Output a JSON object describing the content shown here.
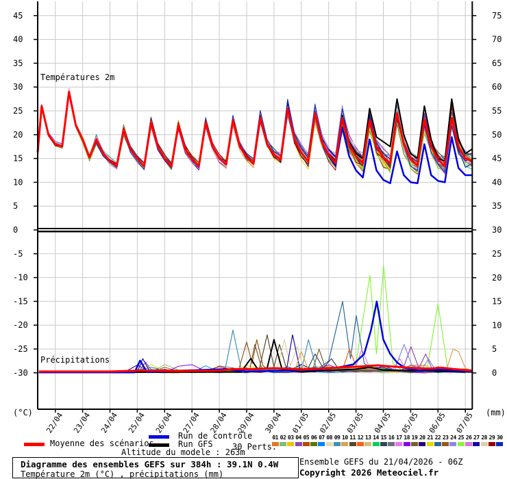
{
  "legend": {
    "mean_label": "Moyenne des scénarios",
    "control_label": "Run de contrôle",
    "gfs_label": "Run GFS",
    "perts_label": "30 Perts.",
    "altitude_line": "Altitude du modele : 263m",
    "pert_numbers": [
      "01",
      "02",
      "03",
      "04",
      "05",
      "06",
      "07",
      "08",
      "09",
      "10",
      "11",
      "12",
      "13",
      "14",
      "15",
      "16",
      "17",
      "18",
      "19",
      "20",
      "21",
      "22",
      "23",
      "24",
      "25",
      "26",
      "27",
      "28",
      "29",
      "30"
    ]
  },
  "footer": {
    "title_line": "Diagramme des ensembles GEFS sur 384h : 39.1N 0.4W",
    "subtitle_line": "Température 2m (°C) , précipitations (mm)",
    "run_line": "Ensemble GEFS du 21/04/2026 - 06Z",
    "copyright_line": "Copyright 2026 Meteociel.fr"
  },
  "chart_data": {
    "type": "line",
    "panels": {
      "top_label": "Températures 2m",
      "bottom_label": "Précipitations"
    },
    "x_dates": [
      "22/04",
      "23/04",
      "24/04",
      "25/04",
      "26/04",
      "27/04",
      "28/04",
      "29/04",
      "30/04",
      "01/05",
      "02/05",
      "03/05",
      "04/05",
      "05/05",
      "06/05",
      "07/05"
    ],
    "axes": {
      "left_ticks": [
        45,
        40,
        35,
        30,
        25,
        20,
        15,
        10,
        5,
        0,
        -5,
        -10,
        -15,
        -20,
        -25,
        -30
      ],
      "right_ticks": [
        75,
        70,
        65,
        60,
        55,
        50,
        45,
        40,
        35,
        30,
        25,
        20,
        15,
        10,
        5,
        0
      ],
      "left_unit": "(°C)",
      "right_unit": "(mm)",
      "temp_scale_c_per_grid": 5,
      "precip_scale_mm_per_grid": 5
    },
    "temperature": {
      "pre": [
        16.3,
        26,
        20
      ],
      "mean_quads": [
        [
          18,
          17.5,
          29,
          22
        ],
        [
          19,
          15.2,
          19,
          16
        ],
        [
          14.5,
          13.5,
          21,
          17
        ],
        [
          15,
          13.3,
          22.5,
          17.5
        ],
        [
          15,
          13.3,
          22,
          17
        ],
        [
          14.8,
          13.4,
          22.5,
          17.5
        ],
        [
          15,
          13.8,
          23,
          17.5
        ],
        [
          15.2,
          13.9,
          23.5,
          18
        ],
        [
          15.8,
          14.8,
          25.5,
          19
        ],
        [
          16.2,
          14.4,
          24.5,
          18.5
        ],
        [
          15.8,
          14,
          23.5,
          18
        ],
        [
          15.4,
          14,
          23,
          17.5
        ],
        [
          15.2,
          13.9,
          24.5,
          18
        ],
        [
          14.8,
          13.5,
          23,
          17.5
        ],
        [
          14.8,
          13.4,
          23.5,
          17.5
        ]
      ],
      "mean_end": [
        15,
        14.5
      ],
      "control_quads": [
        [
          18,
          17.5,
          29,
          22
        ],
        [
          19,
          15.2,
          19,
          16
        ],
        [
          14.5,
          13.5,
          21,
          17
        ],
        [
          15,
          13.3,
          22.5,
          17.5
        ],
        [
          15,
          13.3,
          22,
          17
        ],
        [
          14.8,
          13.4,
          22.5,
          17.5
        ],
        [
          15,
          13.8,
          23,
          17.5
        ],
        [
          15.2,
          13.9,
          23.5,
          18
        ],
        [
          15.8,
          14.8,
          25.5,
          19
        ],
        [
          16.2,
          14.4,
          24.5,
          18.5
        ],
        [
          15.5,
          13.5,
          21.5,
          15.5
        ],
        [
          12.5,
          11,
          19,
          12.5
        ],
        [
          10.5,
          9.8,
          16.5,
          11.5
        ],
        [
          10,
          9.8,
          18,
          11.5
        ],
        [
          10.3,
          10,
          19.5,
          13
        ]
      ],
      "control_end": [
        11.5,
        11.5
      ],
      "gfs_quads": [
        [
          18,
          17.5,
          29,
          22
        ],
        [
          19,
          15.2,
          19,
          16
        ],
        [
          14.5,
          13.5,
          21,
          17
        ],
        [
          15,
          13.3,
          22.5,
          17.5
        ],
        [
          15,
          13.3,
          22,
          17
        ],
        [
          14.8,
          13.4,
          22.5,
          17.5
        ],
        [
          15,
          13.8,
          23,
          17.5
        ],
        [
          15.2,
          13.9,
          23.5,
          18
        ],
        [
          15.8,
          14.8,
          25.5,
          19
        ],
        [
          16.2,
          14.4,
          24.5,
          18.5
        ],
        [
          16,
          14.5,
          24,
          18.5
        ],
        [
          16,
          15,
          25.5,
          19.5
        ],
        [
          18.5,
          17.5,
          27.5,
          20
        ],
        [
          16,
          15,
          26,
          19
        ],
        [
          15,
          14.5,
          27.5,
          19
        ]
      ],
      "gfs_end": [
        16,
        17
      ],
      "spread_trough": [
        0.6,
        0.9,
        1.1,
        1.1,
        1.2,
        1.3,
        1.5,
        1.5,
        1.6,
        1.9,
        2.1,
        2.3,
        2.5,
        2.6,
        2.8
      ],
      "spread_peak": [
        0.9,
        1.3,
        1.5,
        1.6,
        1.8,
        1.9,
        2.0,
        2.1,
        2.3,
        2.6,
        2.9,
        3.1,
        3.3,
        4.0,
        4.2
      ]
    },
    "precipitation": {
      "mean": [
        [
          -0.6,
          0.3
        ],
        [
          2,
          0.3
        ],
        [
          3.2,
          0.5
        ],
        [
          4.5,
          0.4
        ],
        [
          6,
          0.5
        ],
        [
          6.5,
          0.8
        ],
        [
          7.2,
          0.8
        ],
        [
          8,
          1
        ],
        [
          8.5,
          0.9
        ],
        [
          9,
          0.7
        ],
        [
          9.7,
          0.9
        ],
        [
          10.5,
          1.2
        ],
        [
          11,
          1.3
        ],
        [
          11.5,
          1.5
        ],
        [
          11.8,
          1.6
        ],
        [
          12.2,
          1.4
        ],
        [
          12.7,
          1.2
        ],
        [
          13.2,
          1
        ],
        [
          13.7,
          0.9
        ],
        [
          14.1,
          1.1
        ],
        [
          14.6,
          0.8
        ],
        [
          15.26,
          0.5
        ]
      ],
      "control": [
        [
          -0.6,
          0.1
        ],
        [
          2.9,
          0.1
        ],
        [
          3.1,
          2.6
        ],
        [
          3.35,
          0.2
        ],
        [
          6.2,
          0.8
        ],
        [
          7,
          0.3
        ],
        [
          9.5,
          0.6
        ],
        [
          10.4,
          1.2
        ],
        [
          10.9,
          1.8
        ],
        [
          11.3,
          4
        ],
        [
          11.55,
          9
        ],
        [
          11.76,
          15
        ],
        [
          12,
          7
        ],
        [
          12.25,
          4
        ],
        [
          12.5,
          2.2
        ],
        [
          12.8,
          1
        ],
        [
          13.3,
          0.5
        ],
        [
          14,
          0.7
        ],
        [
          15.26,
          0.3
        ]
      ],
      "gfs": [
        [
          -0.6,
          0.1
        ],
        [
          6.8,
          0.2
        ],
        [
          7.15,
          3
        ],
        [
          7.4,
          0.8
        ],
        [
          7.75,
          1
        ],
        [
          8,
          7
        ],
        [
          8.3,
          0.6
        ],
        [
          9,
          0.2
        ],
        [
          11,
          0.8
        ],
        [
          11.5,
          1.2
        ],
        [
          12,
          0.6
        ],
        [
          15.26,
          0.2
        ]
      ],
      "member_spikes": [
        {
          "id": 25,
          "points": [
            [
              -0.6,
              0.1
            ],
            [
              10.6,
              0.4
            ],
            [
              11,
              2
            ],
            [
              11.51,
              20.5
            ],
            [
              11.75,
              4
            ],
            [
              12.01,
              22.5
            ],
            [
              12.35,
              2
            ],
            [
              12.7,
              0.5
            ],
            [
              13.6,
              0.8
            ],
            [
              14,
              14.5
            ],
            [
              14.35,
              1
            ],
            [
              15.26,
              0.3
            ]
          ]
        },
        {
          "id": 22,
          "points": [
            [
              -0.6,
              0.1
            ],
            [
              9.6,
              0.8
            ],
            [
              10,
              2.5
            ],
            [
              10.51,
              15
            ],
            [
              10.8,
              3
            ],
            [
              11.01,
              12
            ],
            [
              11.3,
              2
            ],
            [
              11.6,
              0.8
            ],
            [
              15.26,
              0.3
            ]
          ]
        },
        {
          "id": 9,
          "points": [
            [
              -0.6,
              0.1
            ],
            [
              6.2,
              0.4
            ],
            [
              6.5,
              9
            ],
            [
              6.8,
              0.8
            ],
            [
              9,
              0.5
            ],
            [
              9.26,
              7
            ],
            [
              9.55,
              1
            ],
            [
              15.26,
              0.2
            ]
          ]
        },
        {
          "id": 23,
          "points": [
            [
              -0.6,
              0.1
            ],
            [
              6.7,
              0.5
            ],
            [
              7,
              6.5
            ],
            [
              7.2,
              2
            ],
            [
              7.37,
              7
            ],
            [
              7.6,
              1.5
            ],
            [
              7.9,
              0.4
            ],
            [
              15.26,
              0.3
            ]
          ]
        },
        {
          "id": 11,
          "points": [
            [
              -0.6,
              0.1
            ],
            [
              7.45,
              0.5
            ],
            [
              7.75,
              8
            ],
            [
              8,
              1.2
            ],
            [
              8.2,
              6
            ],
            [
              8.45,
              1
            ],
            [
              15.26,
              0.2
            ]
          ]
        },
        {
          "id": 28,
          "points": [
            [
              -0.6,
              0.1
            ],
            [
              8.1,
              0.5
            ],
            [
              8.38,
              7
            ],
            [
              8.6,
              1.5
            ],
            [
              8.85,
              5.5
            ],
            [
              9.1,
              0.6
            ],
            [
              15.26,
              0.3
            ]
          ]
        },
        {
          "id": 27,
          "points": [
            [
              -0.6,
              0.1
            ],
            [
              3,
              0.2
            ],
            [
              3.2,
              3
            ],
            [
              3.45,
              0.3
            ],
            [
              8.45,
              0.4
            ],
            [
              8.68,
              8
            ],
            [
              8.95,
              0.8
            ],
            [
              15.26,
              0.2
            ]
          ]
        },
        {
          "id": 10,
          "points": [
            [
              -0.6,
              0.1
            ],
            [
              8.75,
              0.4
            ],
            [
              9,
              4.5
            ],
            [
              9.25,
              0.8
            ],
            [
              14.3,
              0.5
            ],
            [
              14.55,
              5
            ],
            [
              14.75,
              4.5
            ],
            [
              15,
              1
            ],
            [
              15.26,
              0.4
            ]
          ]
        },
        {
          "id": 12,
          "points": [
            [
              -0.6,
              0.1
            ],
            [
              10.5,
              0.5
            ],
            [
              10.76,
              5
            ],
            [
              11,
              1.5
            ],
            [
              11.2,
              0.5
            ],
            [
              15.26,
              0.2
            ]
          ]
        },
        {
          "id": 17,
          "points": [
            [
              -0.6,
              0.1
            ],
            [
              10.95,
              0.5
            ],
            [
              11.21,
              5
            ],
            [
              11.5,
              1
            ],
            [
              12.3,
              0.4
            ],
            [
              12.6,
              3
            ],
            [
              12.85,
              0.5
            ],
            [
              15.26,
              0.2
            ]
          ]
        },
        {
          "id": 4,
          "points": [
            [
              -0.6,
              0.1
            ],
            [
              3.05,
              0.2
            ],
            [
              3.3,
              2.3
            ],
            [
              3.55,
              0.3
            ],
            [
              12.7,
              0.5
            ],
            [
              13.01,
              5.5
            ],
            [
              13.3,
              1
            ],
            [
              13.55,
              4
            ],
            [
              13.8,
              0.6
            ],
            [
              15.26,
              0.2
            ]
          ]
        },
        {
          "id": 24,
          "points": [
            [
              -0.6,
              0.1
            ],
            [
              12.4,
              0.5
            ],
            [
              12.76,
              6
            ],
            [
              13.05,
              1.5
            ],
            [
              13.4,
              0.5
            ],
            [
              13.65,
              3
            ],
            [
              13.9,
              0.6
            ],
            [
              15.26,
              0.3
            ]
          ]
        },
        {
          "id": 15,
          "points": [
            [
              -0.6,
              0.1
            ],
            [
              9.2,
              0.4
            ],
            [
              9.5,
              4
            ],
            [
              9.8,
              1
            ],
            [
              10.1,
              3
            ],
            [
              10.4,
              0.5
            ],
            [
              15.26,
              0.2
            ]
          ]
        },
        {
          "id": 19,
          "points": [
            [
              -0.6,
              0.1
            ],
            [
              7.1,
              0.4
            ],
            [
              7.3,
              6
            ],
            [
              7.55,
              1
            ],
            [
              9.4,
              0.4
            ],
            [
              9.65,
              5
            ],
            [
              9.9,
              0.7
            ],
            [
              15.26,
              0.2
            ]
          ]
        }
      ]
    },
    "colors": {
      "mean": "#FF0000",
      "control": "#0000E0",
      "gfs": "#000000",
      "grid": "#C8C8C8",
      "members": [
        "#E07828",
        "#78C078",
        "#EFC400",
        "#9048B0",
        "#B84800",
        "#587800",
        "#0080FF",
        "#E8DCB0",
        "#4090B8",
        "#E0A050",
        "#584828",
        "#F86018",
        "#D0C078",
        "#00D060",
        "#304858",
        "#687078",
        "#E878E8",
        "#8800E8",
        "#786028",
        "#280878",
        "#E8D800",
        "#2868A0",
        "#985818",
        "#8888E8",
        "#88F838",
        "#D878D8",
        "#1808A0",
        "#E0D0A8",
        "#980000",
        "#0828C0"
      ]
    }
  }
}
